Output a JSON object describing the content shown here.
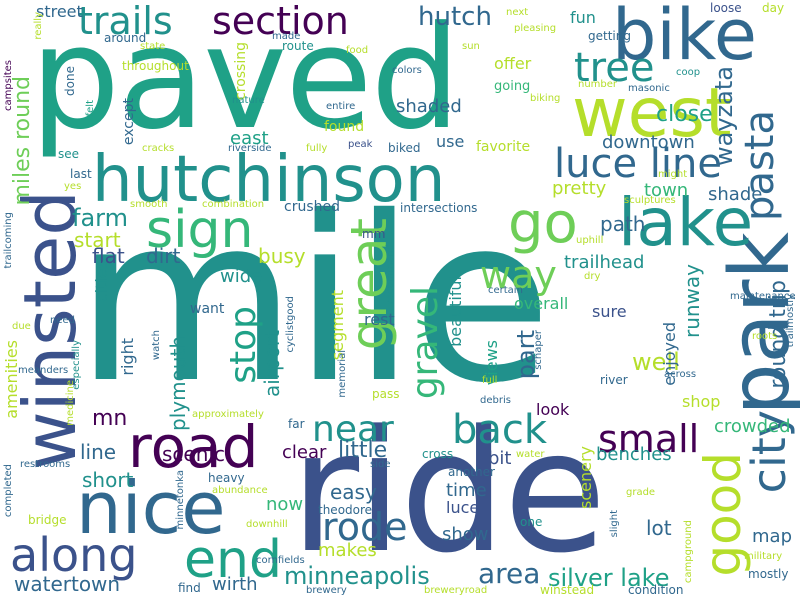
{
  "palette": {
    "dark_purple": "#440154",
    "indigo": "#3b528b",
    "slate_blue": "#31688e",
    "teal": "#21918c",
    "green_teal": "#1fa187",
    "green": "#35b779",
    "lime": "#6ece58",
    "yellow_green": "#b5de2b",
    "yellow": "#dce319"
  },
  "words": [
    {
      "text": "mile",
      "color": "#21918c"
    },
    {
      "text": "paved",
      "color": "#1fa187"
    },
    {
      "text": "ride",
      "color": "#3b528b"
    },
    {
      "text": "hutchinson",
      "color": "#21918c"
    },
    {
      "text": "park",
      "color": "#31688e"
    },
    {
      "text": "bike",
      "color": "#31688e"
    },
    {
      "text": "west",
      "color": "#b5de2b"
    },
    {
      "text": "winsted",
      "color": "#3b528b"
    },
    {
      "text": "road",
      "color": "#440154"
    },
    {
      "text": "nice",
      "color": "#31688e"
    },
    {
      "text": "lake",
      "color": "#21918c"
    },
    {
      "text": "along",
      "color": "#3b528b"
    },
    {
      "text": "end",
      "color": "#1fa187"
    },
    {
      "text": "good",
      "color": "#b5de2b"
    },
    {
      "text": "sign",
      "color": "#35b779"
    },
    {
      "text": "great",
      "color": "#6ece58"
    },
    {
      "text": "go",
      "color": "#6ece58"
    },
    {
      "text": "city",
      "color": "#31688e"
    },
    {
      "text": "luce line",
      "color": "#31688e"
    },
    {
      "text": "trails",
      "color": "#21918c"
    },
    {
      "text": "section",
      "color": "#440154"
    },
    {
      "text": "tree",
      "color": "#21918c"
    },
    {
      "text": "hutch",
      "color": "#31688e"
    },
    {
      "text": "near",
      "color": "#21918c"
    },
    {
      "text": "back",
      "color": "#21918c"
    },
    {
      "text": "way",
      "color": "#6ece58"
    },
    {
      "text": "rode",
      "color": "#31688e"
    },
    {
      "text": "small",
      "color": "#440154"
    },
    {
      "text": "pasta",
      "color": "#31688e"
    },
    {
      "text": "wayzata",
      "color": "#31688e"
    },
    {
      "text": "gravel",
      "color": "#35b779"
    },
    {
      "text": "stop",
      "color": "#1fa187"
    },
    {
      "text": "minneapolis",
      "color": "#21918c"
    },
    {
      "text": "area",
      "color": "#31688e"
    },
    {
      "text": "silver lake",
      "color": "#1fa187"
    },
    {
      "text": "watertown",
      "color": "#31688e"
    },
    {
      "text": "miles round",
      "color": "#6ece58"
    },
    {
      "text": "close",
      "color": "#1fa187"
    },
    {
      "text": "downtown",
      "color": "#31688e"
    },
    {
      "text": "town",
      "color": "#35b779"
    },
    {
      "text": "farm",
      "color": "#21918c"
    },
    {
      "text": "start",
      "color": "#b5de2b"
    },
    {
      "text": "flat",
      "color": "#3b528b"
    },
    {
      "text": "dirt",
      "color": "#31688e"
    },
    {
      "text": "path",
      "color": "#31688e"
    },
    {
      "text": "trailhead",
      "color": "#21918c"
    },
    {
      "text": "round trip",
      "color": "#31688e"
    },
    {
      "text": "runway",
      "color": "#21918c"
    },
    {
      "text": "shade",
      "color": "#31688e"
    },
    {
      "text": "pretty",
      "color": "#b5de2b"
    },
    {
      "text": "well",
      "color": "#b5de2b"
    },
    {
      "text": "part",
      "color": "#31688e"
    },
    {
      "text": "busy",
      "color": "#b5de2b"
    },
    {
      "text": "airport",
      "color": "#21918c"
    },
    {
      "text": "plymouth",
      "color": "#21918c"
    },
    {
      "text": "wide",
      "color": "#21918c"
    },
    {
      "text": "mn",
      "color": "#440154"
    },
    {
      "text": "line",
      "color": "#31688e"
    },
    {
      "text": "short",
      "color": "#21918c"
    },
    {
      "text": "scenic",
      "color": "#440154"
    },
    {
      "text": "little",
      "color": "#31688e"
    },
    {
      "text": "clear",
      "color": "#440154"
    },
    {
      "text": "easy",
      "color": "#31688e"
    },
    {
      "text": "time",
      "color": "#31688e"
    },
    {
      "text": "show",
      "color": "#31688e"
    },
    {
      "text": "makes",
      "color": "#b5de2b"
    },
    {
      "text": "now",
      "color": "#35b779"
    },
    {
      "text": "wirth",
      "color": "#31688e"
    },
    {
      "text": "lot",
      "color": "#31688e"
    },
    {
      "text": "map",
      "color": "#31688e"
    },
    {
      "text": "crowded",
      "color": "#35b779"
    },
    {
      "text": "benches",
      "color": "#21918c"
    },
    {
      "text": "shop",
      "color": "#b5de2b"
    },
    {
      "text": "look",
      "color": "#440154"
    },
    {
      "text": "enjoyed",
      "color": "#31688e"
    },
    {
      "text": "sure",
      "color": "#3b528b"
    },
    {
      "text": "views",
      "color": "#1fa187"
    },
    {
      "text": "rest",
      "color": "#31688e"
    },
    {
      "text": "segment",
      "color": "#b5de2b"
    },
    {
      "text": "overall",
      "color": "#35b779"
    },
    {
      "text": "beautiful",
      "color": "#21918c"
    },
    {
      "text": "bit",
      "color": "#3b528b"
    },
    {
      "text": "luce",
      "color": "#3b528b"
    },
    {
      "text": "scenery",
      "color": "#b5de2b"
    },
    {
      "text": "right",
      "color": "#31688e"
    },
    {
      "text": "cities",
      "color": "#21918c"
    },
    {
      "text": "east",
      "color": "#1fa187"
    },
    {
      "text": "shaded",
      "color": "#31688e"
    },
    {
      "text": "except",
      "color": "#31688e"
    },
    {
      "text": "street",
      "color": "#31688e"
    },
    {
      "text": "amenities",
      "color": "#b5de2b"
    },
    {
      "text": "offer",
      "color": "#b5de2b"
    },
    {
      "text": "fun",
      "color": "#21918c"
    },
    {
      "text": "use",
      "color": "#31688e"
    },
    {
      "text": "found",
      "color": "#b5de2b"
    },
    {
      "text": "favorite",
      "color": "#b5de2b"
    },
    {
      "text": "crushed",
      "color": "#31688e"
    },
    {
      "text": "want",
      "color": "#31688e"
    },
    {
      "text": "going",
      "color": "#35b779"
    },
    {
      "text": "biked",
      "color": "#31688e"
    },
    {
      "text": "intersections",
      "color": "#31688e"
    },
    {
      "text": "crossing",
      "color": "#b5de2b"
    },
    {
      "text": "route",
      "color": "#21918c"
    },
    {
      "text": "around",
      "color": "#31688e"
    },
    {
      "text": "throughout",
      "color": "#b5de2b"
    },
    {
      "text": "see",
      "color": "#21918c"
    },
    {
      "text": "last",
      "color": "#31688e"
    },
    {
      "text": "done",
      "color": "#31688e"
    },
    {
      "text": "really",
      "color": "#b5de2b"
    },
    {
      "text": "felt",
      "color": "#1fa187"
    },
    {
      "text": "coop",
      "color": "#21918c"
    },
    {
      "text": "getting",
      "color": "#31688e"
    },
    {
      "text": "loose",
      "color": "#3b528b"
    },
    {
      "text": "day",
      "color": "#b5de2b"
    },
    {
      "text": "next",
      "color": "#b5de2b"
    },
    {
      "text": "pleasing",
      "color": "#b5de2b"
    },
    {
      "text": "sun",
      "color": "#b5de2b"
    },
    {
      "text": "masonic",
      "color": "#31688e"
    },
    {
      "text": "number",
      "color": "#b5de2b"
    },
    {
      "text": "colors",
      "color": "#31688e"
    },
    {
      "text": "biking",
      "color": "#b5de2b"
    },
    {
      "text": "nature",
      "color": "#21918c"
    },
    {
      "text": "entire",
      "color": "#31688e"
    },
    {
      "text": "riverside",
      "color": "#31688e"
    },
    {
      "text": "fully",
      "color": "#b5de2b"
    },
    {
      "text": "peak",
      "color": "#3b528b"
    },
    {
      "text": "cracks",
      "color": "#b5de2b"
    },
    {
      "text": "made",
      "color": "#31688e"
    },
    {
      "text": "state",
      "color": "#b5de2b"
    },
    {
      "text": "food",
      "color": "#b5de2b"
    },
    {
      "text": "campsites",
      "color": "#440154"
    },
    {
      "text": "yes",
      "color": "#b5de2b"
    },
    {
      "text": "smooth",
      "color": "#b5de2b"
    },
    {
      "text": "combination",
      "color": "#b5de2b"
    },
    {
      "text": "sculptures",
      "color": "#b5de2b"
    },
    {
      "text": "might",
      "color": "#b5de2b"
    },
    {
      "text": "mm",
      "color": "#3b528b"
    },
    {
      "text": "recommend",
      "color": "#21918c"
    },
    {
      "text": "uphill",
      "color": "#b5de2b"
    },
    {
      "text": "dry",
      "color": "#b5de2b"
    },
    {
      "text": "certain",
      "color": "#31688e"
    },
    {
      "text": "trailcoming",
      "color": "#31688e"
    },
    {
      "text": "need",
      "color": "#31688e"
    },
    {
      "text": "due",
      "color": "#b5de2b"
    },
    {
      "text": "cyclistgood",
      "color": "#31688e"
    },
    {
      "text": "watch",
      "color": "#31688e"
    },
    {
      "text": "memorial",
      "color": "#31688e"
    },
    {
      "text": "schaper",
      "color": "#31688e"
    },
    {
      "text": "maintenance",
      "color": "#31688e"
    },
    {
      "text": "trailmostly",
      "color": "#31688e"
    },
    {
      "text": "roots",
      "color": "#b5de2b"
    },
    {
      "text": "meanders",
      "color": "#31688e"
    },
    {
      "text": "especially",
      "color": "#21918c"
    },
    {
      "text": "medicine",
      "color": "#b5de2b"
    },
    {
      "text": "full",
      "color": "#b5de2b"
    },
    {
      "text": "across",
      "color": "#31688e"
    },
    {
      "text": "river",
      "color": "#31688e"
    },
    {
      "text": "pass",
      "color": "#b5de2b"
    },
    {
      "text": "debris",
      "color": "#31688e"
    },
    {
      "text": "approximately",
      "color": "#b5de2b"
    },
    {
      "text": "far",
      "color": "#31688e"
    },
    {
      "text": "cross",
      "color": "#21918c"
    },
    {
      "text": "water",
      "color": "#b5de2b"
    },
    {
      "text": "another",
      "color": "#31688e"
    },
    {
      "text": "side",
      "color": "#31688e"
    },
    {
      "text": "heavy",
      "color": "#31688e"
    },
    {
      "text": "abundance",
      "color": "#b5de2b"
    },
    {
      "text": "restrooms",
      "color": "#31688e"
    },
    {
      "text": "minnetonka",
      "color": "#31688e"
    },
    {
      "text": "theodore",
      "color": "#31688e"
    },
    {
      "text": "one",
      "color": "#21918c"
    },
    {
      "text": "grade",
      "color": "#b5de2b"
    },
    {
      "text": "slight",
      "color": "#31688e"
    },
    {
      "text": "campground",
      "color": "#b5de2b"
    },
    {
      "text": "military",
      "color": "#b5de2b"
    },
    {
      "text": "completed",
      "color": "#31688e"
    },
    {
      "text": "bridge",
      "color": "#b5de2b"
    },
    {
      "text": "downhill",
      "color": "#b5de2b"
    },
    {
      "text": "cornfields",
      "color": "#31688e"
    },
    {
      "text": "find",
      "color": "#31688e"
    },
    {
      "text": "brewery",
      "color": "#31688e"
    },
    {
      "text": "breweryroad",
      "color": "#b5de2b"
    },
    {
      "text": "winstead",
      "color": "#b5de2b"
    },
    {
      "text": "condition",
      "color": "#31688e"
    },
    {
      "text": "mostly",
      "color": "#31688e"
    }
  ]
}
